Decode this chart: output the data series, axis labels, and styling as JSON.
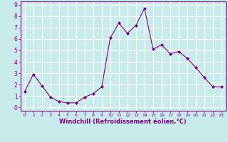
{
  "x": [
    0,
    1,
    2,
    3,
    4,
    5,
    6,
    7,
    8,
    9,
    10,
    11,
    12,
    13,
    14,
    15,
    16,
    17,
    18,
    19,
    20,
    21,
    22,
    23
  ],
  "y": [
    1.4,
    2.9,
    1.9,
    0.9,
    0.5,
    0.4,
    0.4,
    0.9,
    1.2,
    1.8,
    6.1,
    7.4,
    6.5,
    7.2,
    8.7,
    5.1,
    5.5,
    4.7,
    4.9,
    4.3,
    3.5,
    2.6,
    1.8,
    1.8
  ],
  "xlabel": "Windchill (Refroidissement éolien,°C)",
  "xlim": [
    -0.5,
    23.5
  ],
  "ylim": [
    -0.3,
    9.3
  ],
  "xticks": [
    0,
    1,
    2,
    3,
    4,
    5,
    6,
    7,
    8,
    9,
    10,
    11,
    12,
    13,
    14,
    15,
    16,
    17,
    18,
    19,
    20,
    21,
    22,
    23
  ],
  "yticks": [
    0,
    1,
    2,
    3,
    4,
    5,
    6,
    7,
    8,
    9
  ],
  "line_color": "#800080",
  "marker": "D",
  "marker_size": 2,
  "bg_color": "#c8ecec",
  "grid_color": "#ffffff",
  "tick_color": "#800080",
  "label_color": "#800080"
}
